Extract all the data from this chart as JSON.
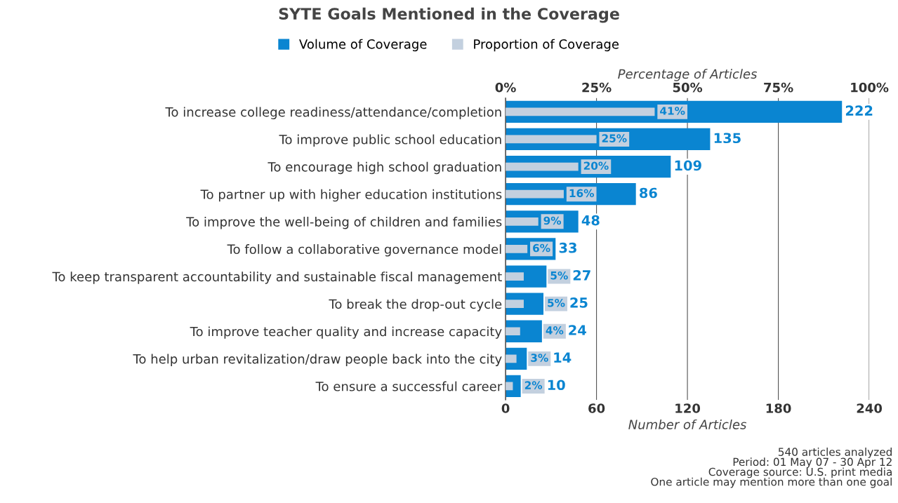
{
  "chart_data": {
    "type": "bar",
    "orientation": "horizontal",
    "title": "SYTE Goals Mentioned in the Coverage",
    "categories": [
      "To increase college readiness/attendance/completion",
      "To improve public school education",
      "To encourage high school graduation",
      "To partner up with higher education institutions",
      "To improve the well-being of children and families",
      "To follow a collaborative governance model",
      "To keep transparent accountability and sustainable fiscal management",
      "To break the drop-out cycle",
      "To improve teacher quality and increase capacity",
      "To help urban revitalization/draw people back into the city",
      "To ensure a successful career"
    ],
    "series": [
      {
        "name": "Volume of Coverage",
        "color": "#0a85d1",
        "values": [
          222,
          135,
          109,
          86,
          48,
          33,
          27,
          25,
          24,
          14,
          10
        ],
        "data_labels": true
      },
      {
        "name": "Proportion of Coverage",
        "color": "#c3d0df",
        "axis": "x2",
        "values": [
          41,
          25,
          20,
          16,
          9,
          6,
          5,
          5,
          4,
          3,
          2
        ],
        "value_labels": [
          "41%",
          "25%",
          "20%",
          "16%",
          "9%",
          "6%",
          "5%",
          "5%",
          "4%",
          "3%",
          "2%"
        ]
      }
    ],
    "xlabel": "Number of Articles",
    "xlim": [
      0,
      240
    ],
    "xticks": [
      0,
      60,
      120,
      180,
      240
    ],
    "x2label": "Percentage of Articles",
    "x2lim": [
      0,
      100
    ],
    "x2ticks": [
      {
        "value": 0,
        "label": "0%"
      },
      {
        "value": 25,
        "label": "25%"
      },
      {
        "value": 50,
        "label": "50%"
      },
      {
        "value": 75,
        "label": "75%"
      },
      {
        "value": 100,
        "label": "100%"
      }
    ],
    "grid": "x",
    "legend": "top",
    "annotations": [
      "540 articles analyzed",
      "Period: 01 May 07 - 30 Apr 12",
      "Coverage source: U.S. print media",
      "One article may mention more than one goal"
    ]
  }
}
